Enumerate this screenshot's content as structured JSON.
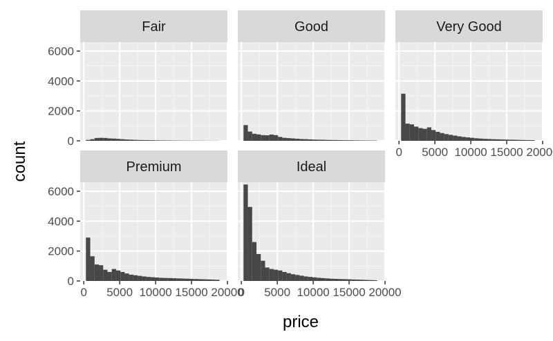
{
  "chart_data": {
    "type": "bar",
    "xlabel": "price",
    "ylabel": "count",
    "xlim": [
      -500,
      20000
    ],
    "ylim": [
      0,
      6600
    ],
    "x_ticks": [
      0,
      5000,
      10000,
      15000,
      20000
    ],
    "y_ticks": [
      0,
      2000,
      4000,
      6000
    ],
    "x_tick_labels": [
      "0",
      "5000",
      "10000",
      "15000",
      "20000"
    ],
    "y_tick_labels": [
      "0",
      "2000",
      "4000",
      "6000"
    ],
    "bin_width": 600,
    "bin_starts": [
      300,
      900,
      1500,
      2100,
      2700,
      3300,
      3900,
      4500,
      5100,
      5700,
      6300,
      6900,
      7500,
      8100,
      8700,
      9300,
      9900,
      10500,
      11100,
      11700,
      12300,
      12900,
      13500,
      14100,
      14700,
      15300,
      15900,
      16500,
      17100,
      17700,
      18300
    ],
    "panels": [
      {
        "label": "Fair",
        "values": [
          60,
          110,
          190,
          200,
          190,
          160,
          150,
          130,
          110,
          90,
          75,
          65,
          55,
          50,
          45,
          40,
          35,
          30,
          28,
          25,
          22,
          20,
          18,
          16,
          15,
          14,
          12,
          11,
          10,
          9,
          8
        ]
      },
      {
        "label": "Good",
        "values": [
          1050,
          620,
          470,
          430,
          380,
          370,
          420,
          380,
          260,
          200,
          180,
          160,
          140,
          120,
          110,
          95,
          85,
          75,
          70,
          60,
          55,
          50,
          45,
          40,
          38,
          35,
          30,
          28,
          25,
          22,
          20
        ]
      },
      {
        "label": "Very Good",
        "values": [
          3150,
          1150,
          1100,
          950,
          850,
          800,
          900,
          720,
          600,
          520,
          450,
          400,
          350,
          300,
          260,
          230,
          200,
          170,
          150,
          130,
          120,
          110,
          100,
          90,
          80,
          75,
          70,
          60,
          55,
          50,
          45
        ]
      },
      {
        "label": "Premium",
        "values": [
          2900,
          1650,
          1100,
          1050,
          750,
          600,
          800,
          700,
          600,
          500,
          420,
          380,
          340,
          300,
          270,
          250,
          230,
          210,
          200,
          190,
          180,
          170,
          160,
          150,
          140,
          130,
          120,
          110,
          100,
          90,
          80
        ]
      },
      {
        "label": "Ideal",
        "values": [
          6450,
          4950,
          2600,
          1800,
          1350,
          900,
          800,
          750,
          700,
          600,
          520,
          450,
          400,
          350,
          300,
          270,
          240,
          210,
          190,
          170,
          150,
          140,
          130,
          120,
          110,
          100,
          90,
          80,
          70,
          60,
          50
        ]
      }
    ],
    "colors": {
      "bar": "#474747",
      "panel_background": "#ebebeb",
      "strip_background": "#d9d9d9",
      "grid_major": "#ffffff",
      "grid_minor": "#f5f5f5",
      "tick": "#333333"
    }
  }
}
